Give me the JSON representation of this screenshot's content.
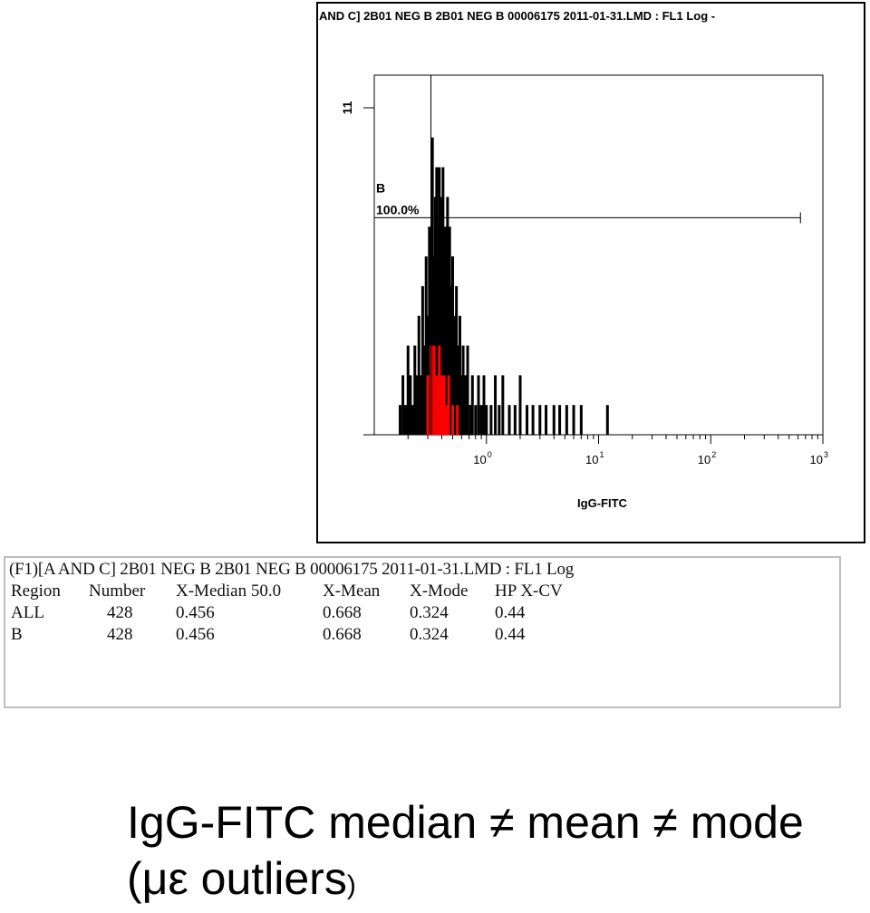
{
  "chart_data": {
    "type": "histogram",
    "title": "AND C] 2B01 NEG B 2B01 NEG B 00006175 2011-01-31.LMD : FL1 Log -",
    "xlabel": "IgG-FITC",
    "xscale": "log",
    "xlim": [
      0.1,
      1000
    ],
    "ylim": [
      0,
      11
    ],
    "y_ticks": [
      {
        "value": 11,
        "label": "11"
      }
    ],
    "x_ticks": [
      {
        "value": 1,
        "base": "10",
        "exp": "0"
      },
      {
        "value": 10,
        "base": "10",
        "exp": "1"
      },
      {
        "value": 100,
        "base": "10",
        "exp": "2"
      },
      {
        "value": 1000,
        "base": "10",
        "exp": "3"
      }
    ],
    "region_gate": {
      "label": "B",
      "percent": "100.0%",
      "x_start": 0.1,
      "x_end": 631,
      "level": 7.3
    },
    "marker_x": 0.32,
    "series": [
      {
        "color": "#000000",
        "points": [
          [
            0.17,
            1
          ],
          [
            0.18,
            2
          ],
          [
            0.19,
            1
          ],
          [
            0.2,
            3
          ],
          [
            0.21,
            2
          ],
          [
            0.22,
            1
          ],
          [
            0.23,
            3
          ],
          [
            0.24,
            2
          ],
          [
            0.25,
            4
          ],
          [
            0.26,
            2
          ],
          [
            0.27,
            5
          ],
          [
            0.28,
            3
          ],
          [
            0.29,
            6
          ],
          [
            0.3,
            4
          ],
          [
            0.31,
            7
          ],
          [
            0.32,
            5
          ],
          [
            0.33,
            10
          ],
          [
            0.34,
            6
          ],
          [
            0.35,
            8
          ],
          [
            0.36,
            9
          ],
          [
            0.37,
            7
          ],
          [
            0.38,
            9
          ],
          [
            0.39,
            6
          ],
          [
            0.4,
            8
          ],
          [
            0.41,
            9
          ],
          [
            0.42,
            5
          ],
          [
            0.43,
            7
          ],
          [
            0.44,
            6
          ],
          [
            0.45,
            8
          ],
          [
            0.46,
            4
          ],
          [
            0.47,
            7
          ],
          [
            0.48,
            5
          ],
          [
            0.5,
            6
          ],
          [
            0.52,
            4
          ],
          [
            0.54,
            5
          ],
          [
            0.56,
            3
          ],
          [
            0.58,
            4
          ],
          [
            0.6,
            2
          ],
          [
            0.62,
            3
          ],
          [
            0.65,
            2
          ],
          [
            0.68,
            3
          ],
          [
            0.72,
            1
          ],
          [
            0.75,
            2
          ],
          [
            0.8,
            1
          ],
          [
            0.85,
            2
          ],
          [
            0.9,
            1
          ],
          [
            0.95,
            2
          ],
          [
            1.0,
            1
          ],
          [
            1.1,
            1
          ],
          [
            1.2,
            2
          ],
          [
            1.3,
            1
          ],
          [
            1.4,
            2
          ],
          [
            1.6,
            1
          ],
          [
            1.8,
            1
          ],
          [
            2.0,
            2
          ],
          [
            2.3,
            1
          ],
          [
            2.6,
            1
          ],
          [
            3.0,
            1
          ],
          [
            3.4,
            1
          ],
          [
            4.0,
            1
          ],
          [
            4.5,
            1
          ],
          [
            5.2,
            1
          ],
          [
            6.0,
            1
          ],
          [
            7.0,
            1
          ],
          [
            12.0,
            1
          ]
        ]
      },
      {
        "color": "#ff0000",
        "points": [
          [
            0.3,
            2
          ],
          [
            0.32,
            3
          ],
          [
            0.34,
            3
          ],
          [
            0.36,
            2
          ],
          [
            0.38,
            3
          ],
          [
            0.4,
            2
          ],
          [
            0.42,
            2
          ],
          [
            0.44,
            1
          ],
          [
            0.46,
            2
          ],
          [
            0.5,
            1
          ],
          [
            0.55,
            1
          ]
        ]
      }
    ]
  },
  "stats": {
    "title": "(F1)[A AND C] 2B01 NEG B 2B01 NEG B 00006175 2011-01-31.LMD : FL1 Log",
    "headers": [
      "Region",
      "Number",
      "X-Median 50.0",
      "X-Mean",
      "X-Mode",
      "HP X-CV"
    ],
    "rows": [
      [
        "ALL",
        "428",
        "0.456",
        "0.668",
        "0.324",
        "0.44"
      ],
      [
        "B",
        "428",
        "0.456",
        "0.668",
        "0.324",
        "0.44"
      ]
    ]
  },
  "caption": {
    "line1": "IgG-FITC median ≠ mean ≠ mode",
    "line2": "(με outliers",
    "line2_close": ")"
  }
}
